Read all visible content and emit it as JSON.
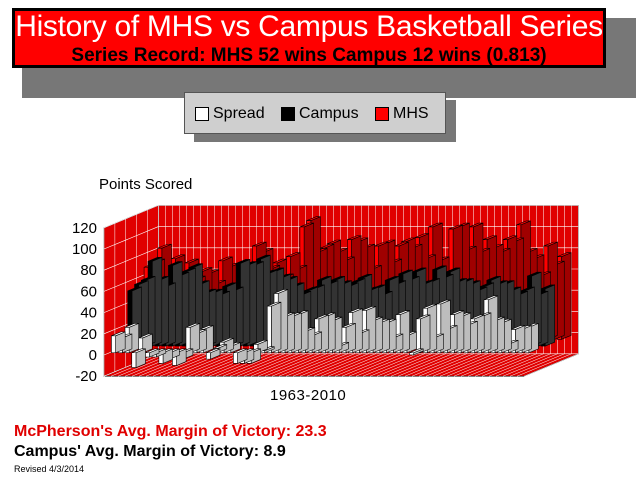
{
  "header": {
    "title": "History of MHS vs Campus Basketball Series",
    "record": "Series Record:  MHS 52 wins  Campus 12 wins (0.813)"
  },
  "legend": {
    "items": [
      {
        "label": "Spread",
        "color": "#ffffff"
      },
      {
        "label": "Campus",
        "color": "#000000"
      },
      {
        "label": "MHS",
        "color": "#ff0000"
      }
    ]
  },
  "chart_data": {
    "type": "bar",
    "title": "",
    "ylabel": "Points Scored",
    "xlabel": "1963-2010",
    "ylim": [
      -20,
      120
    ],
    "yticks": [
      "120",
      "100",
      "80",
      "60",
      "40",
      "20",
      "0",
      "-20"
    ],
    "colors": {
      "spread": "#ffffff",
      "campus": "#000000",
      "mhs": "#ff0000",
      "wall": "#e00000",
      "grid": "#ffffff"
    },
    "series": [
      {
        "name": "Spread",
        "values": [
          16,
          14,
          24,
          -14,
          14,
          -4,
          -4,
          -10,
          -6,
          -12,
          -6,
          24,
          18,
          22,
          -6,
          4,
          10,
          6,
          -10,
          -10,
          -10,
          8,
          2,
          44,
          56,
          34,
          34,
          36,
          20,
          16,
          32,
          34,
          30,
          6,
          24,
          38,
          18,
          40,
          30,
          28,
          28,
          14,
          36,
          16,
          -2,
          32,
          42,
          14,
          46,
          22,
          36,
          34,
          26,
          32,
          34,
          50,
          30,
          28,
          8,
          22,
          22,
          24
        ]
      },
      {
        "name": "Campus",
        "values": [
          52,
          58,
          62,
          80,
          62,
          56,
          76,
          66,
          70,
          74,
          58,
          50,
          50,
          48,
          56,
          52,
          78,
          76,
          76,
          82,
          68,
          70,
          64,
          62,
          56,
          48,
          52,
          54,
          62,
          58,
          62,
          58,
          56,
          60,
          64,
          52,
          54,
          48,
          62,
          58,
          68,
          62,
          70,
          58,
          60,
          72,
          64,
          70,
          60,
          60,
          58,
          52,
          56,
          62,
          58,
          58,
          52,
          48,
          52,
          66,
          48,
          54
        ]
      },
      {
        "name": "MHS",
        "values": [
          68,
          72,
          86,
          66,
          76,
          52,
          72,
          56,
          64,
          62,
          52,
          74,
          68,
          70,
          50,
          56,
          88,
          82,
          66,
          72,
          58,
          78,
          66,
          106,
          112,
          82,
          86,
          90,
          82,
          74,
          94,
          92,
          86,
          66,
          88,
          90,
          72,
          88,
          92,
          86,
          96,
          76,
          106,
          74,
          58,
          104,
          106,
          84,
          106,
          82,
          94,
          86,
          82,
          94,
          92,
          108,
          82,
          76,
          60,
          88,
          70,
          78
        ]
      }
    ]
  },
  "stats": {
    "mcpherson": "McPherson's Avg. Margin of Victory: 23.3",
    "campus": "Campus' Avg. Margin of Victory: 8.9"
  },
  "footer": {
    "revised": "Revised 4/3/2014"
  }
}
